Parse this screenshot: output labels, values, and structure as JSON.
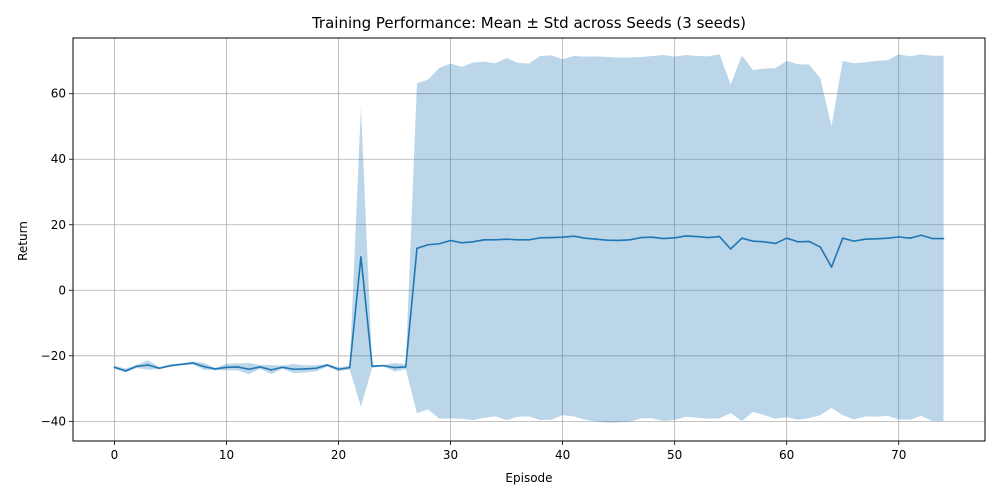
{
  "chart_data": {
    "type": "line",
    "title": "Training Performance: Mean ± Std across Seeds (3 seeds)",
    "xlabel": "Episode",
    "ylabel": "Return",
    "xlim": [
      -3.7,
      77.7
    ],
    "ylim": [
      -46,
      77
    ],
    "xticks": [
      0,
      10,
      20,
      30,
      40,
      50,
      60,
      70
    ],
    "yticks": [
      -40,
      -20,
      0,
      20,
      40,
      60
    ],
    "grid": true,
    "colors": {
      "line": "#1f77b4",
      "band": "#1f77b4"
    },
    "series": [
      {
        "x": [
          0,
          1,
          2,
          3,
          4,
          5,
          6,
          7,
          8,
          9,
          10,
          11,
          12,
          13,
          14,
          15,
          16,
          17,
          18,
          19,
          20,
          21,
          22,
          23,
          24,
          25,
          26,
          27,
          28,
          29,
          30,
          31,
          32,
          33,
          34,
          35,
          36,
          37,
          38,
          39,
          40,
          41,
          42,
          43,
          44,
          45,
          46,
          47,
          48,
          49,
          50,
          51,
          52,
          53,
          54,
          55,
          56,
          57,
          58,
          59,
          60,
          61,
          62,
          63,
          64,
          65,
          66,
          67,
          68,
          69,
          70,
          71,
          72,
          73,
          74
        ],
        "mean": [
          -23.5,
          -24.6,
          -23.2,
          -22.8,
          -23.8,
          -23.0,
          -22.6,
          -22.2,
          -23.3,
          -24.0,
          -23.5,
          -23.4,
          -24.1,
          -23.4,
          -24.3,
          -23.5,
          -24.1,
          -24.0,
          -23.8,
          -22.8,
          -24.1,
          -23.6,
          10.2,
          -23.2,
          -23.0,
          -23.6,
          -23.4,
          12.8,
          13.9,
          14.2,
          15.2,
          14.5,
          14.8,
          15.4,
          15.4,
          15.6,
          15.4,
          15.4,
          16.0,
          16.1,
          16.2,
          16.5,
          15.9,
          15.6,
          15.3,
          15.2,
          15.4,
          16.1,
          16.2,
          15.8,
          16.0,
          16.6,
          16.4,
          16.1,
          16.4,
          12.6,
          15.9,
          15.0,
          14.8,
          14.3,
          15.9,
          14.8,
          14.9,
          13.2,
          7.1,
          15.9,
          15.0,
          15.6,
          15.7,
          15.9,
          16.3,
          15.9,
          16.8,
          15.8,
          15.8
        ],
        "upper": [
          -23.0,
          -23.9,
          -22.7,
          -21.4,
          -23.4,
          -22.6,
          -22.3,
          -21.7,
          -22.2,
          -23.7,
          -22.4,
          -22.3,
          -22.2,
          -22.8,
          -22.8,
          -23.0,
          -22.5,
          -22.9,
          -22.9,
          -22.5,
          -23.5,
          -23.0,
          55.9,
          -22.8,
          -22.8,
          -22.2,
          -22.6,
          63.2,
          64.3,
          67.9,
          69.2,
          68.2,
          69.5,
          69.8,
          69.3,
          70.9,
          69.4,
          69.2,
          71.5,
          71.7,
          70.5,
          71.5,
          71.3,
          71.4,
          71.2,
          71.0,
          71.1,
          71.2,
          71.5,
          71.8,
          71.3,
          71.8,
          71.5,
          71.4,
          72.0,
          62.8,
          71.7,
          67.2,
          67.7,
          67.8,
          70.0,
          69.0,
          68.9,
          64.7,
          50.1,
          70.0,
          69.3,
          69.6,
          70.0,
          70.2,
          72.0,
          71.4,
          72.0,
          71.6,
          71.6
        ],
        "lower": [
          -24.0,
          -25.1,
          -23.7,
          -24.2,
          -24.1,
          -23.4,
          -22.9,
          -22.6,
          -24.3,
          -24.4,
          -24.4,
          -24.5,
          -25.6,
          -24.0,
          -25.6,
          -23.9,
          -25.3,
          -25.1,
          -24.7,
          -23.3,
          -24.7,
          -24.2,
          -35.5,
          -23.6,
          -23.2,
          -24.8,
          -24.1,
          -37.5,
          -36.4,
          -39.2,
          -39.1,
          -39.2,
          -39.6,
          -38.9,
          -38.5,
          -39.6,
          -38.6,
          -38.5,
          -39.6,
          -39.5,
          -38.1,
          -38.5,
          -39.5,
          -40.1,
          -40.4,
          -40.3,
          -40.1,
          -39.1,
          -39.1,
          -39.9,
          -39.6,
          -38.6,
          -38.9,
          -39.2,
          -39.1,
          -37.5,
          -39.9,
          -37.1,
          -38.1,
          -39.2,
          -38.7,
          -39.5,
          -39.0,
          -38.1,
          -35.9,
          -38.1,
          -39.4,
          -38.5,
          -38.6,
          -38.3,
          -39.4,
          -39.5,
          -38.3,
          -39.9,
          -39.9
        ]
      }
    ]
  }
}
